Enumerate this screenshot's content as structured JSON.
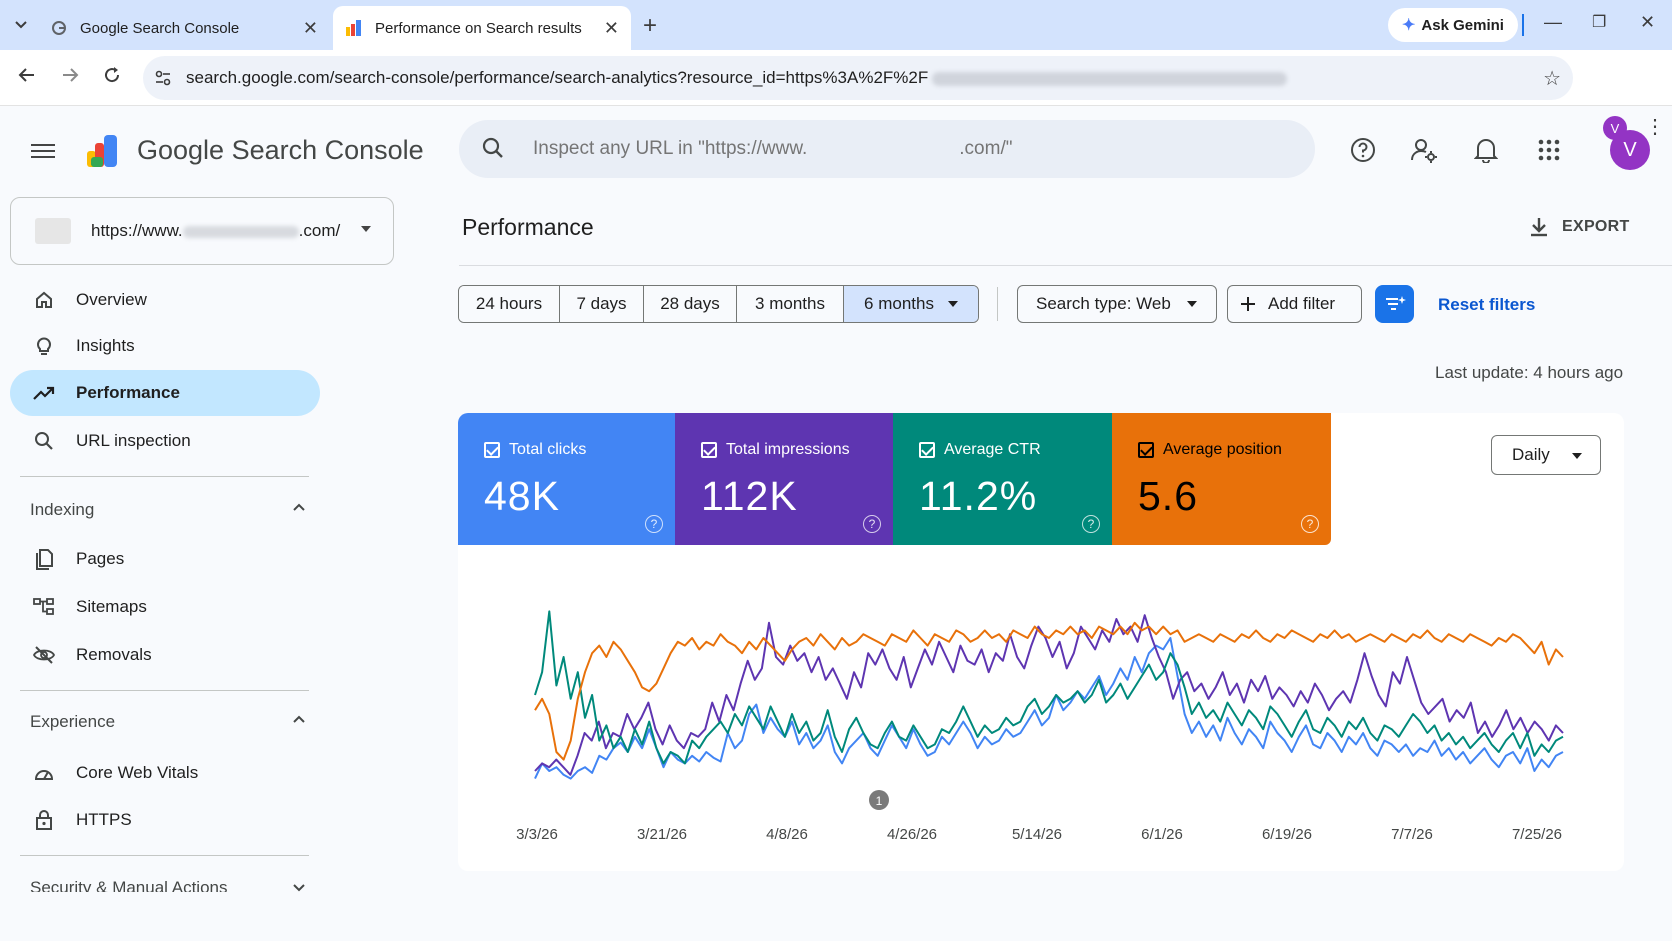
{
  "browser": {
    "tabs": [
      {
        "title": "Google Search Console",
        "active": false
      },
      {
        "title": "Performance on Search results",
        "active": true
      }
    ],
    "ask_gemini": "Ask Gemini",
    "url": "search.google.com/search-console/performance/search-analytics?resource_id=https%3A%2F%2F",
    "profile_initial": "V"
  },
  "header": {
    "app_title": "Google Search Console",
    "search_placeholder": "Inspect any URL in \"https://www.        .com/\"",
    "avatar_initial": "V"
  },
  "sidebar": {
    "property_prefix": "https://www.",
    "property_suffix": ".com/",
    "items": [
      {
        "label": "Overview",
        "icon": "home-icon"
      },
      {
        "label": "Insights",
        "icon": "lightbulb-icon"
      },
      {
        "label": "Performance",
        "icon": "trending-up-icon",
        "active": true
      },
      {
        "label": "URL inspection",
        "icon": "search-icon"
      }
    ],
    "indexing": {
      "title": "Indexing",
      "items": [
        {
          "label": "Pages",
          "icon": "pages-icon"
        },
        {
          "label": "Sitemaps",
          "icon": "sitemap-icon"
        },
        {
          "label": "Removals",
          "icon": "removals-icon"
        }
      ]
    },
    "experience": {
      "title": "Experience",
      "items": [
        {
          "label": "Core Web Vitals",
          "icon": "gauge-icon"
        },
        {
          "label": "HTTPS",
          "icon": "lock-icon"
        }
      ]
    },
    "security_title": "Security & Manual Actions"
  },
  "main": {
    "title": "Performance",
    "export_label": "EXPORT",
    "date_ranges": [
      "24 hours",
      "7 days",
      "28 days",
      "3 months",
      "6 months"
    ],
    "active_range": "6 months",
    "search_type": "Search type: Web",
    "add_filter": "Add filter",
    "reset_filters": "Reset filters",
    "last_update": "Last update: 4 hours ago",
    "granularity": "Daily",
    "metrics": [
      {
        "label": "Total clicks",
        "value": "48K",
        "color": "#4285f4"
      },
      {
        "label": "Total impressions",
        "value": "112K",
        "color": "#5e35b1"
      },
      {
        "label": "Average CTR",
        "value": "11.2%",
        "color": "#00897b"
      },
      {
        "label": "Average position",
        "value": "5.6",
        "color": "#e8710a"
      }
    ],
    "annotation_marker": "1"
  },
  "chart_data": {
    "type": "line",
    "x_tick_labels": [
      "3/3/26",
      "3/21/26",
      "4/8/26",
      "4/26/26",
      "5/14/26",
      "6/1/26",
      "6/19/26",
      "7/7/26",
      "7/25/26"
    ],
    "y_axis_visible": false,
    "series": [
      {
        "name": "Total clicks",
        "color": "#4285f4",
        "values": [
          0.06,
          0.14,
          0.1,
          0.12,
          0.08,
          0.06,
          0.1,
          0.12,
          0.09,
          0.18,
          0.16,
          0.22,
          0.25,
          0.2,
          0.28,
          0.22,
          0.32,
          0.22,
          0.12,
          0.2,
          0.16,
          0.14,
          0.18,
          0.15,
          0.2,
          0.17,
          0.15,
          0.3,
          0.22,
          0.26,
          0.4,
          0.45,
          0.3,
          0.38,
          0.32,
          0.28,
          0.36,
          0.24,
          0.3,
          0.22,
          0.26,
          0.34,
          0.2,
          0.14,
          0.22,
          0.26,
          0.3,
          0.22,
          0.18,
          0.26,
          0.34,
          0.28,
          0.22,
          0.32,
          0.24,
          0.18,
          0.2,
          0.28,
          0.24,
          0.3,
          0.36,
          0.3,
          0.22,
          0.28,
          0.24,
          0.26,
          0.32,
          0.28,
          0.3,
          0.36,
          0.42,
          0.34,
          0.38,
          0.5,
          0.42,
          0.46,
          0.52,
          0.48,
          0.54,
          0.6,
          0.5,
          0.56,
          0.64,
          0.58,
          0.7,
          0.62,
          0.72,
          0.76,
          0.74,
          0.8,
          0.6,
          0.4,
          0.3,
          0.36,
          0.28,
          0.34,
          0.26,
          0.38,
          0.3,
          0.24,
          0.32,
          0.28,
          0.22,
          0.36,
          0.3,
          0.26,
          0.2,
          0.28,
          0.34,
          0.24,
          0.22,
          0.3,
          0.26,
          0.2,
          0.28,
          0.24,
          0.3,
          0.22,
          0.18,
          0.26,
          0.24,
          0.2,
          0.24,
          0.18,
          0.22,
          0.2,
          0.26,
          0.18,
          0.22,
          0.16,
          0.2,
          0.14,
          0.18,
          0.22,
          0.16,
          0.12,
          0.18,
          0.2,
          0.14,
          0.22,
          0.1,
          0.16,
          0.12,
          0.18,
          0.2
        ]
      },
      {
        "name": "Total impressions",
        "color": "#5e35b1",
        "values": [
          0.1,
          0.14,
          0.12,
          0.16,
          0.12,
          0.08,
          0.18,
          0.3,
          0.26,
          0.36,
          0.22,
          0.3,
          0.28,
          0.4,
          0.32,
          0.38,
          0.46,
          0.32,
          0.24,
          0.34,
          0.26,
          0.22,
          0.3,
          0.28,
          0.32,
          0.46,
          0.36,
          0.5,
          0.42,
          0.56,
          0.68,
          0.58,
          0.64,
          0.88,
          0.7,
          0.66,
          0.76,
          0.68,
          0.72,
          0.62,
          0.7,
          0.58,
          0.64,
          0.56,
          0.48,
          0.62,
          0.54,
          0.72,
          0.66,
          0.74,
          0.64,
          0.58,
          0.7,
          0.54,
          0.64,
          0.74,
          0.66,
          0.78,
          0.7,
          0.62,
          0.76,
          0.68,
          0.66,
          0.74,
          0.62,
          0.72,
          0.68,
          0.82,
          0.7,
          0.64,
          0.76,
          0.86,
          0.8,
          0.7,
          0.78,
          0.64,
          0.72,
          0.86,
          0.8,
          0.74,
          0.84,
          0.78,
          0.9,
          0.82,
          0.86,
          0.78,
          0.92,
          0.8,
          0.7,
          0.62,
          0.48,
          0.58,
          0.62,
          0.52,
          0.56,
          0.48,
          0.54,
          0.62,
          0.5,
          0.56,
          0.46,
          0.58,
          0.52,
          0.6,
          0.48,
          0.54,
          0.5,
          0.44,
          0.52,
          0.46,
          0.56,
          0.5,
          0.42,
          0.48,
          0.52,
          0.46,
          0.58,
          0.72,
          0.6,
          0.5,
          0.44,
          0.62,
          0.56,
          0.7,
          0.58,
          0.46,
          0.4,
          0.44,
          0.48,
          0.36,
          0.42,
          0.38,
          0.46,
          0.3,
          0.36,
          0.28,
          0.34,
          0.42,
          0.32,
          0.38,
          0.3,
          0.36,
          0.32,
          0.26,
          0.34,
          0.3
        ]
      },
      {
        "name": "Average CTR",
        "color": "#00897b",
        "values": [
          0.5,
          0.62,
          0.94,
          0.55,
          0.7,
          0.48,
          0.62,
          0.38,
          0.5,
          0.26,
          0.34,
          0.22,
          0.28,
          0.2,
          0.32,
          0.24,
          0.36,
          0.22,
          0.14,
          0.2,
          0.18,
          0.14,
          0.26,
          0.22,
          0.28,
          0.32,
          0.36,
          0.3,
          0.4,
          0.34,
          0.44,
          0.38,
          0.32,
          0.44,
          0.36,
          0.28,
          0.4,
          0.3,
          0.36,
          0.26,
          0.3,
          0.42,
          0.28,
          0.2,
          0.32,
          0.38,
          0.3,
          0.24,
          0.22,
          0.3,
          0.36,
          0.28,
          0.26,
          0.34,
          0.28,
          0.22,
          0.24,
          0.32,
          0.3,
          0.36,
          0.44,
          0.36,
          0.28,
          0.34,
          0.3,
          0.32,
          0.38,
          0.34,
          0.36,
          0.44,
          0.48,
          0.4,
          0.44,
          0.5,
          0.46,
          0.48,
          0.52,
          0.46,
          0.5,
          0.58,
          0.46,
          0.5,
          0.56,
          0.48,
          0.54,
          0.6,
          0.66,
          0.58,
          0.62,
          0.72,
          0.66,
          0.54,
          0.4,
          0.46,
          0.38,
          0.42,
          0.36,
          0.46,
          0.4,
          0.34,
          0.42,
          0.38,
          0.32,
          0.44,
          0.4,
          0.34,
          0.28,
          0.36,
          0.42,
          0.32,
          0.3,
          0.38,
          0.34,
          0.28,
          0.36,
          0.32,
          0.38,
          0.3,
          0.26,
          0.34,
          0.32,
          0.28,
          0.34,
          0.4,
          0.36,
          0.3,
          0.34,
          0.26,
          0.3,
          0.24,
          0.28,
          0.22,
          0.26,
          0.3,
          0.24,
          0.2,
          0.26,
          0.3,
          0.22,
          0.3,
          0.18,
          0.24,
          0.2,
          0.26,
          0.28
        ]
      },
      {
        "name": "Average position",
        "color": "#e8710a",
        "values": [
          0.42,
          0.48,
          0.4,
          0.2,
          0.16,
          0.26,
          0.48,
          0.62,
          0.72,
          0.76,
          0.7,
          0.78,
          0.74,
          0.68,
          0.62,
          0.54,
          0.52,
          0.56,
          0.64,
          0.72,
          0.78,
          0.76,
          0.8,
          0.74,
          0.78,
          0.76,
          0.82,
          0.78,
          0.76,
          0.72,
          0.78,
          0.74,
          0.8,
          0.76,
          0.72,
          0.68,
          0.74,
          0.78,
          0.8,
          0.76,
          0.82,
          0.78,
          0.74,
          0.8,
          0.76,
          0.78,
          0.82,
          0.8,
          0.78,
          0.76,
          0.82,
          0.8,
          0.78,
          0.84,
          0.8,
          0.76,
          0.82,
          0.8,
          0.78,
          0.84,
          0.82,
          0.78,
          0.8,
          0.84,
          0.8,
          0.82,
          0.78,
          0.84,
          0.82,
          0.8,
          0.86,
          0.82,
          0.8,
          0.84,
          0.82,
          0.86,
          0.82,
          0.84,
          0.8,
          0.86,
          0.84,
          0.82,
          0.86,
          0.82,
          0.88,
          0.84,
          0.86,
          0.82,
          0.86,
          0.82,
          0.84,
          0.78,
          0.8,
          0.82,
          0.8,
          0.78,
          0.82,
          0.8,
          0.78,
          0.82,
          0.8,
          0.84,
          0.8,
          0.78,
          0.82,
          0.8,
          0.84,
          0.82,
          0.8,
          0.78,
          0.82,
          0.8,
          0.84,
          0.8,
          0.82,
          0.78,
          0.8,
          0.82,
          0.8,
          0.78,
          0.82,
          0.8,
          0.78,
          0.82,
          0.8,
          0.84,
          0.8,
          0.78,
          0.82,
          0.8,
          0.78,
          0.82,
          0.8,
          0.78,
          0.76,
          0.8,
          0.78,
          0.82,
          0.8,
          0.76,
          0.72,
          0.78,
          0.66,
          0.74,
          0.7
        ]
      }
    ]
  }
}
